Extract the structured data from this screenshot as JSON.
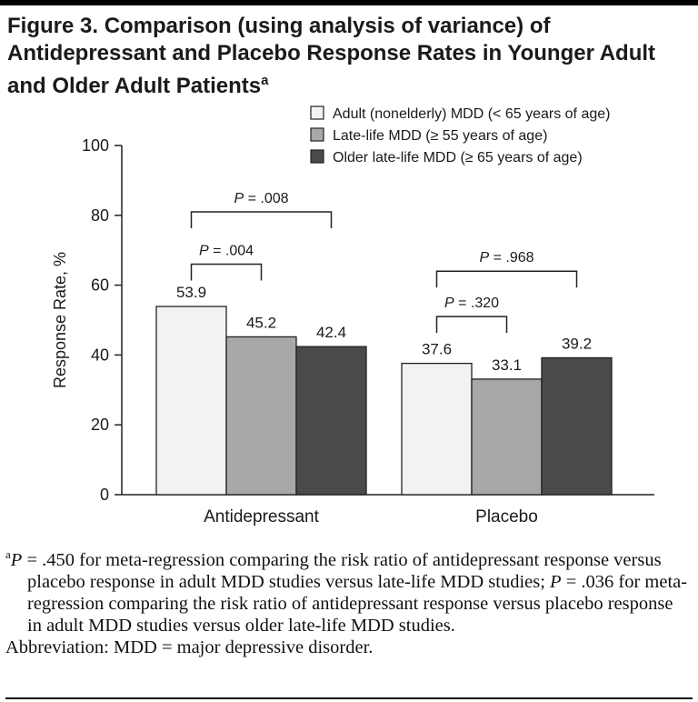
{
  "title": {
    "text": "Figure 3. Comparison (using analysis of variance) of Antidepressant and Placebo Response Rates in Younger Adult and Older Adult Patients",
    "marker": "a"
  },
  "chart_data": {
    "type": "bar",
    "categories": [
      "Antidepressant",
      "Placebo"
    ],
    "series": [
      {
        "name": "Adult (nonelderly) MDD (< 65 years of age)",
        "values": [
          53.9,
          37.6
        ],
        "color": "#f2f2f2"
      },
      {
        "name": "Late-life MDD (≥ 55 years of age)",
        "values": [
          45.2,
          33.1
        ],
        "color": "#a8a8a8"
      },
      {
        "name": "Older late-life MDD (≥ 65 years of age)",
        "values": [
          42.4,
          39.2
        ],
        "color": "#4a4a4a"
      }
    ],
    "ylabel": "Response Rate, %",
    "ylim": [
      0,
      100
    ],
    "yticks": [
      0,
      20,
      40,
      60,
      80,
      100
    ],
    "legend_position": "top-right",
    "grid": false,
    "annotations": [
      {
        "category": 0,
        "from_series": 0,
        "to_series": 1,
        "label": "P = .004",
        "level": 66
      },
      {
        "category": 0,
        "from_series": 0,
        "to_series": 2,
        "label": "P = .008",
        "level": 81
      },
      {
        "category": 1,
        "from_series": 0,
        "to_series": 1,
        "label": "P = .320",
        "level": 51
      },
      {
        "category": 1,
        "from_series": 0,
        "to_series": 2,
        "label": "P = .968",
        "level": 64
      }
    ]
  },
  "footnote": {
    "a_marker": "a",
    "a_p_label": "P",
    "a_text_1": " = .450 for meta-regression comparing the risk ratio of antidepressant response versus placebo response in adult MDD studies versus late-life MDD studies; ",
    "a_p_label_2": "P",
    "a_text_2": " = .036 for meta-regression comparing the risk ratio of antidepressant response versus placebo response in adult MDD studies versus older late-life MDD studies.",
    "abbreviation": "Abbreviation: MDD = major depressive disorder."
  }
}
